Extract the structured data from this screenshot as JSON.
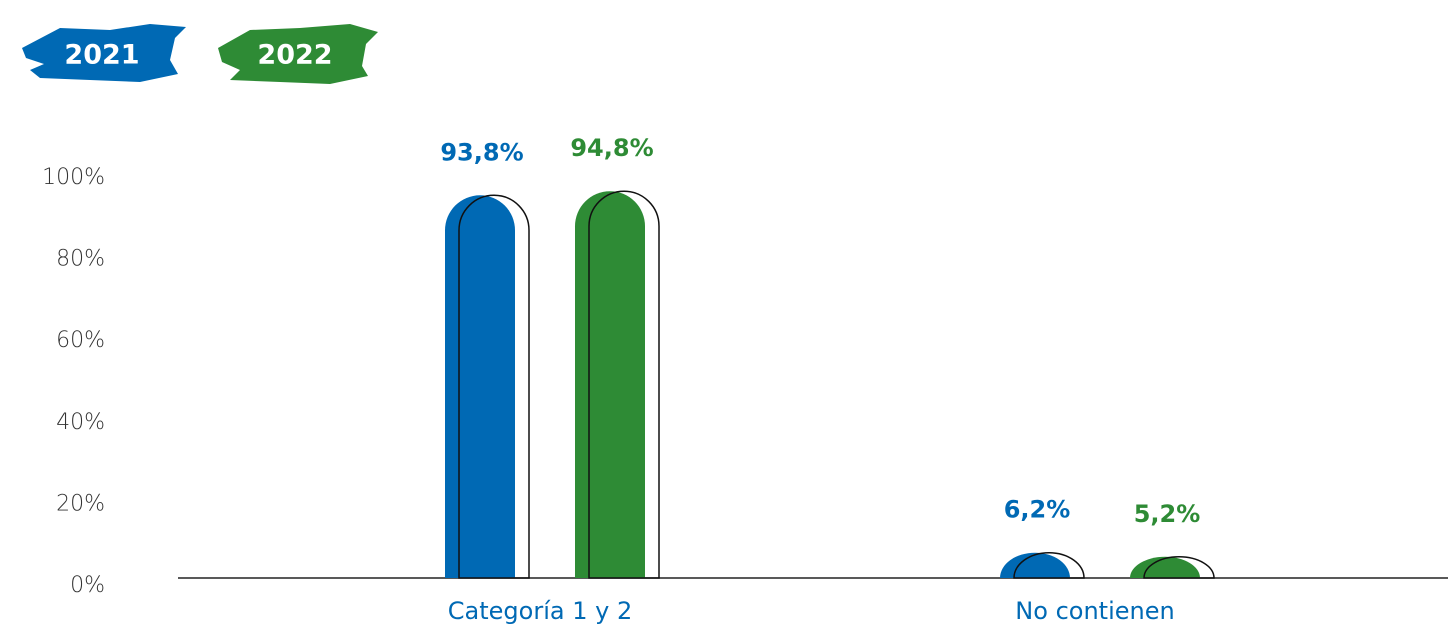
{
  "chart_data": {
    "type": "bar",
    "categories": [
      "Categoría 1 y 2",
      "No contienen"
    ],
    "series": [
      {
        "name": "2021",
        "color": "#0069b4",
        "values": [
          93.8,
          6.2
        ],
        "value_labels": [
          "93,8%",
          "6,2%"
        ]
      },
      {
        "name": "2022",
        "color": "#2e8b35",
        "values": [
          94.8,
          5.2
        ],
        "value_labels": [
          "94,8%",
          "5,2%"
        ]
      }
    ],
    "ylim": [
      0,
      100
    ],
    "yticks": [
      {
        "value": 0,
        "label": "0%"
      },
      {
        "value": 20,
        "label": "20%"
      },
      {
        "value": 40,
        "label": "40%"
      },
      {
        "value": 60,
        "label": "60%"
      },
      {
        "value": 80,
        "label": "80%"
      },
      {
        "value": 100,
        "label": "100%"
      }
    ],
    "legend": "top-left"
  }
}
